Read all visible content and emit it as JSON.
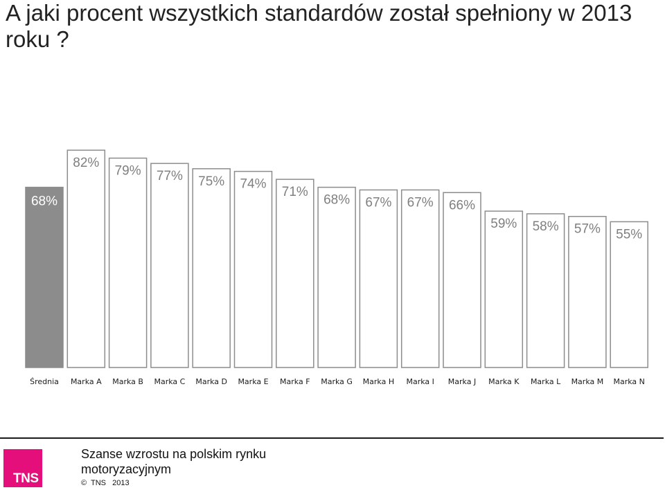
{
  "title": "A jaki procent wszystkich standardów został spełniony w 2013 roku ?",
  "chart_data": {
    "type": "bar",
    "categories": [
      "Średnia",
      "Marka A",
      "Marka B",
      "Marka C",
      "Marka D",
      "Marka E",
      "Marka F",
      "Marka G",
      "Marka H",
      "Marka I",
      "Marka J",
      "Marka K",
      "Marka L",
      "Marka M",
      "Marka N"
    ],
    "values": [
      68,
      82,
      79,
      77,
      75,
      74,
      71,
      68,
      67,
      67,
      66,
      59,
      58,
      57,
      55
    ],
    "value_labels": [
      "68%",
      "82%",
      "79%",
      "77%",
      "75%",
      "74%",
      "71%",
      "68%",
      "67%",
      "67%",
      "66%",
      "59%",
      "58%",
      "57%",
      "55%"
    ],
    "highlight_index": 0,
    "colors": {
      "highlight_fill": "#8c8c8c",
      "highlight_label": "#ffffff",
      "bar_fill": "#ffffff",
      "bar_stroke": "#8c8c8c",
      "label_color": "#7f7f7f"
    },
    "grid": false,
    "legend": "none"
  },
  "footer": {
    "logo": "TNS",
    "text": "Szanse wzrostu na polskim rynku motoryzacyjnym",
    "copyright": "©  TNS   2013"
  }
}
